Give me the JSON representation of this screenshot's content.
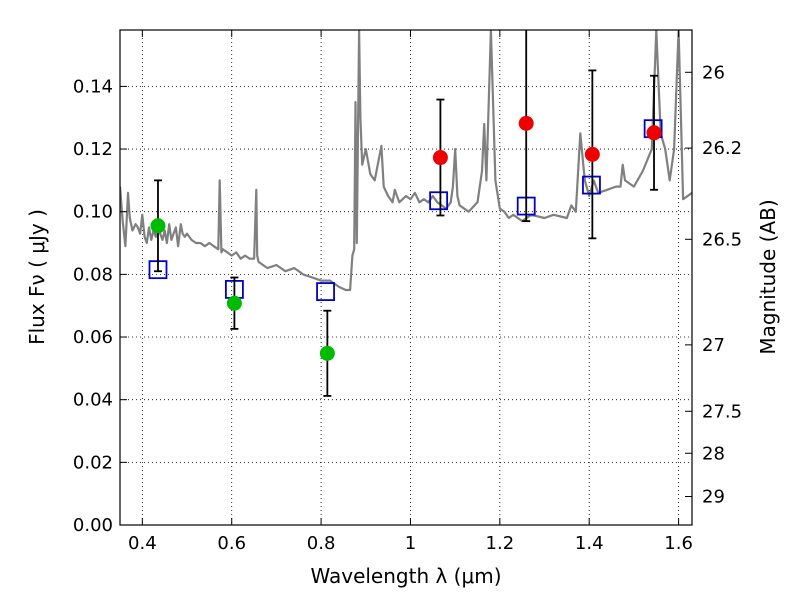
{
  "chart_data": {
    "type": "scatter",
    "title": "",
    "xlabel": "Wavelength  λ (μm)",
    "ylabel": "Flux  Fν  ( μJy )",
    "ylabel_right": "Magnitude (AB)",
    "xlim": [
      0.35,
      1.63
    ],
    "ylim": [
      0.0,
      0.158
    ],
    "grid": true,
    "grid_style": "dotted",
    "x_ticks": [
      0.4,
      0.6,
      0.8,
      1.0,
      1.2,
      1.4,
      1.6
    ],
    "x_tick_labels": [
      "0.4",
      "0.6",
      "0.8",
      "1",
      "1.2",
      "1.4",
      "1.6"
    ],
    "y_ticks": [
      0.0,
      0.02,
      0.04,
      0.06,
      0.08,
      0.1,
      0.12,
      0.14
    ],
    "y_tick_labels": [
      "0.00",
      "0.02",
      "0.04",
      "0.06",
      "0.08",
      "0.10",
      "0.12",
      "0.14"
    ],
    "right_ticks": [
      {
        "label": "26",
        "flux": 0.1445
      },
      {
        "label": "26.2",
        "flux": 0.1203
      },
      {
        "label": "26.5",
        "flux": 0.0912
      },
      {
        "label": "27",
        "flux": 0.0575
      },
      {
        "label": "27.5",
        "flux": 0.0363
      },
      {
        "label": "28",
        "flux": 0.0229
      },
      {
        "label": "29",
        "flux": 0.0091
      }
    ],
    "colors": {
      "spectrum": "#808080",
      "green": "#00bb00",
      "red": "#ee0000",
      "model_box": "#0000cc",
      "errorbar": "#000000"
    },
    "observed": [
      {
        "x": 0.435,
        "y": 0.0955,
        "yerr": [
          0.0145,
          0.0145
        ],
        "color": "green"
      },
      {
        "x": 0.606,
        "y": 0.0708,
        "yerr": [
          0.0082,
          0.0082
        ],
        "color": "green"
      },
      {
        "x": 0.814,
        "y": 0.0548,
        "yerr": [
          0.0136,
          0.0136
        ],
        "color": "green"
      },
      {
        "x": 1.067,
        "y": 0.1173,
        "yerr": [
          0.0185,
          0.0185
        ],
        "color": "red"
      },
      {
        "x": 1.259,
        "y": 0.1282,
        "yerr": [
          0.0312,
          0.0312
        ],
        "color": "red"
      },
      {
        "x": 1.407,
        "y": 0.1183,
        "yerr": [
          0.0268,
          0.0268
        ],
        "color": "red"
      },
      {
        "x": 1.545,
        "y": 0.1252,
        "yerr": [
          0.0182,
          0.0182
        ],
        "color": "red"
      }
    ],
    "model_photometry": [
      {
        "x": 0.435,
        "y": 0.0815
      },
      {
        "x": 0.606,
        "y": 0.0752
      },
      {
        "x": 0.81,
        "y": 0.0745
      },
      {
        "x": 1.063,
        "y": 0.1035
      },
      {
        "x": 1.259,
        "y": 0.1018
      },
      {
        "x": 1.405,
        "y": 0.1085
      },
      {
        "x": 1.543,
        "y": 0.1265
      }
    ],
    "spectrum": {
      "x": [
        0.35,
        0.356,
        0.362,
        0.368,
        0.372,
        0.378,
        0.385,
        0.39,
        0.395,
        0.4,
        0.405,
        0.41,
        0.415,
        0.42,
        0.425,
        0.43,
        0.435,
        0.44,
        0.445,
        0.45,
        0.455,
        0.46,
        0.465,
        0.47,
        0.475,
        0.48,
        0.486,
        0.49,
        0.495,
        0.5,
        0.51,
        0.52,
        0.53,
        0.54,
        0.55,
        0.56,
        0.57,
        0.573,
        0.577,
        0.58,
        0.59,
        0.6,
        0.61,
        0.62,
        0.63,
        0.64,
        0.65,
        0.655,
        0.657,
        0.66,
        0.67,
        0.68,
        0.7,
        0.72,
        0.74,
        0.76,
        0.78,
        0.8,
        0.82,
        0.84,
        0.855,
        0.865,
        0.87,
        0.874,
        0.877,
        0.88,
        0.885,
        0.888,
        0.892,
        0.9,
        0.91,
        0.92,
        0.935,
        0.94,
        0.95,
        0.96,
        0.965,
        0.975,
        0.99,
        1.0,
        1.01,
        1.02,
        1.03,
        1.04,
        1.05,
        1.06,
        1.08,
        1.09,
        1.095,
        1.1,
        1.105,
        1.11,
        1.13,
        1.15,
        1.16,
        1.165,
        1.17,
        1.18,
        1.19,
        1.2,
        1.21,
        1.22,
        1.23,
        1.25,
        1.27,
        1.3,
        1.32,
        1.35,
        1.36,
        1.37,
        1.38,
        1.39,
        1.4,
        1.41,
        1.42,
        1.44,
        1.46,
        1.47,
        1.475,
        1.48,
        1.5,
        1.52,
        1.54,
        1.55,
        1.56,
        1.57,
        1.58,
        1.59,
        1.6,
        1.61,
        1.63
      ],
      "y": [
        0.108,
        0.097,
        0.089,
        0.106,
        0.098,
        0.094,
        0.096,
        0.095,
        0.093,
        0.099,
        0.092,
        0.09,
        0.095,
        0.091,
        0.094,
        0.092,
        0.095,
        0.093,
        0.091,
        0.094,
        0.09,
        0.096,
        0.091,
        0.093,
        0.095,
        0.089,
        0.096,
        0.093,
        0.092,
        0.093,
        0.091,
        0.09,
        0.09,
        0.089,
        0.09,
        0.089,
        0.088,
        0.11,
        0.087,
        0.088,
        0.087,
        0.086,
        0.087,
        0.085,
        0.086,
        0.085,
        0.085,
        0.107,
        0.086,
        0.084,
        0.083,
        0.082,
        0.083,
        0.081,
        0.082,
        0.08,
        0.079,
        0.078,
        0.078,
        0.076,
        0.075,
        0.075,
        0.086,
        0.088,
        0.135,
        0.09,
        0.158,
        0.13,
        0.115,
        0.12,
        0.112,
        0.11,
        0.121,
        0.108,
        0.105,
        0.103,
        0.107,
        0.103,
        0.105,
        0.104,
        0.106,
        0.103,
        0.104,
        0.103,
        0.105,
        0.103,
        0.101,
        0.103,
        0.108,
        0.12,
        0.105,
        0.102,
        0.1,
        0.103,
        0.113,
        0.128,
        0.11,
        0.158,
        0.11,
        0.101,
        0.1,
        0.098,
        0.099,
        0.097,
        0.099,
        0.098,
        0.099,
        0.098,
        0.102,
        0.1,
        0.125,
        0.11,
        0.105,
        0.11,
        0.106,
        0.107,
        0.108,
        0.108,
        0.115,
        0.11,
        0.108,
        0.113,
        0.12,
        0.158,
        0.125,
        0.12,
        0.11,
        0.12,
        0.158,
        0.104,
        0.106
      ]
    }
  }
}
